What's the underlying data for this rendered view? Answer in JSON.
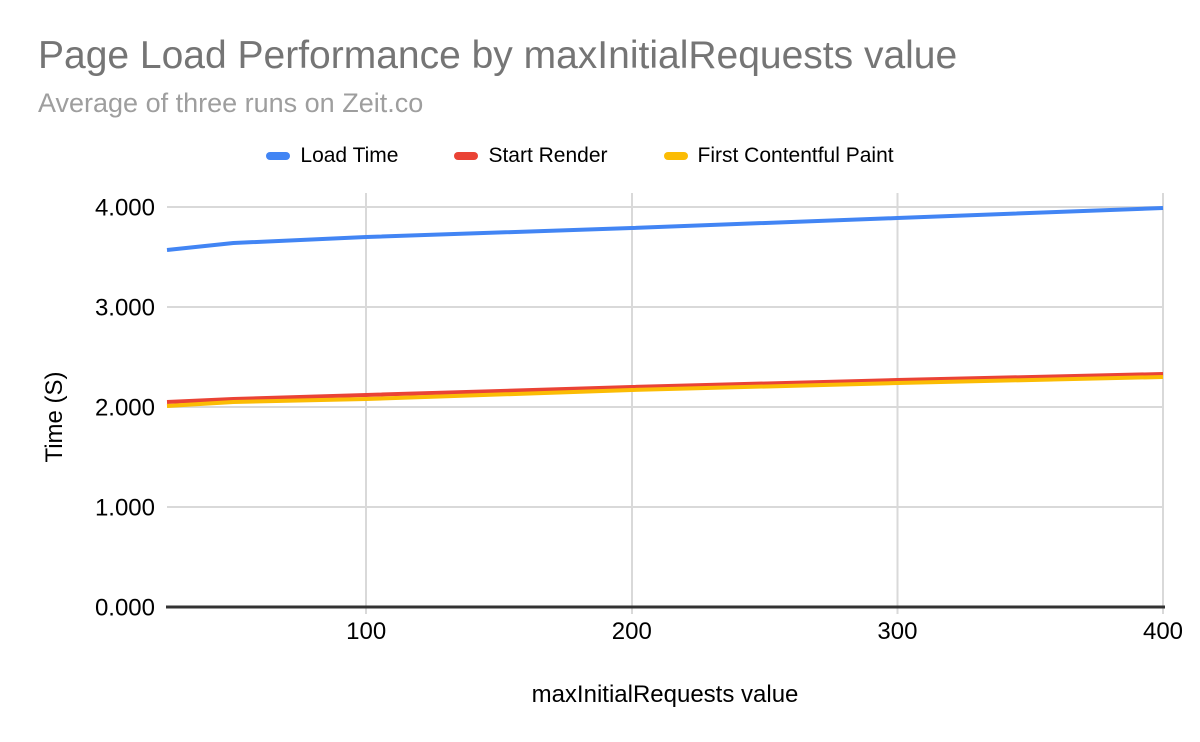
{
  "chart_data": {
    "type": "line",
    "title": "Page Load Performance by maxInitialRequests value",
    "subtitle": "Average of three runs on Zeit.co",
    "xlabel": "maxInitialRequests value",
    "ylabel": "Time (S)",
    "x": [
      25,
      50,
      100,
      200,
      300,
      400
    ],
    "series": [
      {
        "name": "Load Time",
        "color": "#4285f4",
        "values": [
          3.57,
          3.64,
          3.7,
          3.79,
          3.89,
          3.99
        ]
      },
      {
        "name": "Start Render",
        "color": "#ea4335",
        "values": [
          2.05,
          2.08,
          2.12,
          2.2,
          2.27,
          2.33
        ]
      },
      {
        "name": "First Contentful Paint",
        "color": "#fbbc04",
        "values": [
          2.01,
          2.05,
          2.08,
          2.17,
          2.24,
          2.3
        ]
      }
    ],
    "xlim": [
      25,
      400
    ],
    "ylim": [
      0,
      4
    ],
    "x_ticks": [
      {
        "v": 100,
        "label": "100"
      },
      {
        "v": 200,
        "label": "200"
      },
      {
        "v": 300,
        "label": "300"
      },
      {
        "v": 400,
        "label": "400"
      }
    ],
    "y_ticks": [
      {
        "v": 0,
        "label": "0.000"
      },
      {
        "v": 1,
        "label": "1.000"
      },
      {
        "v": 2,
        "label": "2.000"
      },
      {
        "v": 3,
        "label": "3.000"
      },
      {
        "v": 4,
        "label": "4.000"
      }
    ],
    "grid": true,
    "legend_position": "top",
    "colors": {
      "title": "#757575",
      "subtitle": "#9e9e9e",
      "text": "#000000",
      "grid": "#d9d9d9",
      "axis": "#333333",
      "background": "#ffffff"
    }
  }
}
